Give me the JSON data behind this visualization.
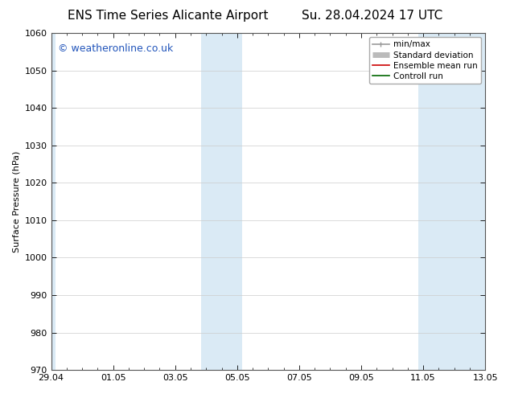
{
  "title_left": "ENS Time Series Alicante Airport",
  "title_right": "Su. 28.04.2024 17 UTC",
  "ylabel": "Surface Pressure (hPa)",
  "ylim": [
    970,
    1060
  ],
  "yticks": [
    970,
    980,
    990,
    1000,
    1010,
    1020,
    1030,
    1040,
    1050,
    1060
  ],
  "xtick_positions": [
    0,
    2,
    4,
    6,
    8,
    10,
    12,
    14
  ],
  "xtick_labels": [
    "29.04",
    "01.05",
    "03.05",
    "05.05",
    "07.05",
    "09.05",
    "11.05",
    "13.05"
  ],
  "xlim": [
    0,
    14
  ],
  "shaded_bands": [
    {
      "x_start": -0.15,
      "x_end": 0.15
    },
    {
      "x_start": 4.85,
      "x_end": 6.15
    },
    {
      "x_start": 11.85,
      "x_end": 14.15
    }
  ],
  "shaded_color": "#daeaf5",
  "watermark_text": "© weatheronline.co.uk",
  "watermark_color": "#2255bb",
  "legend_items": [
    {
      "label": "min/max",
      "color": "#999999",
      "lw": 1.2
    },
    {
      "label": "Standard deviation",
      "color": "#bbbbbb",
      "lw": 5
    },
    {
      "label": "Ensemble mean run",
      "color": "#cc0000",
      "lw": 1.2
    },
    {
      "label": "Controll run",
      "color": "#006600",
      "lw": 1.2
    }
  ],
  "background_color": "#ffffff",
  "plot_bg_color": "#ffffff",
  "grid_color": "#cccccc",
  "title_fontsize": 11,
  "axis_fontsize": 8,
  "tick_fontsize": 8,
  "watermark_fontsize": 9,
  "legend_fontsize": 7.5
}
